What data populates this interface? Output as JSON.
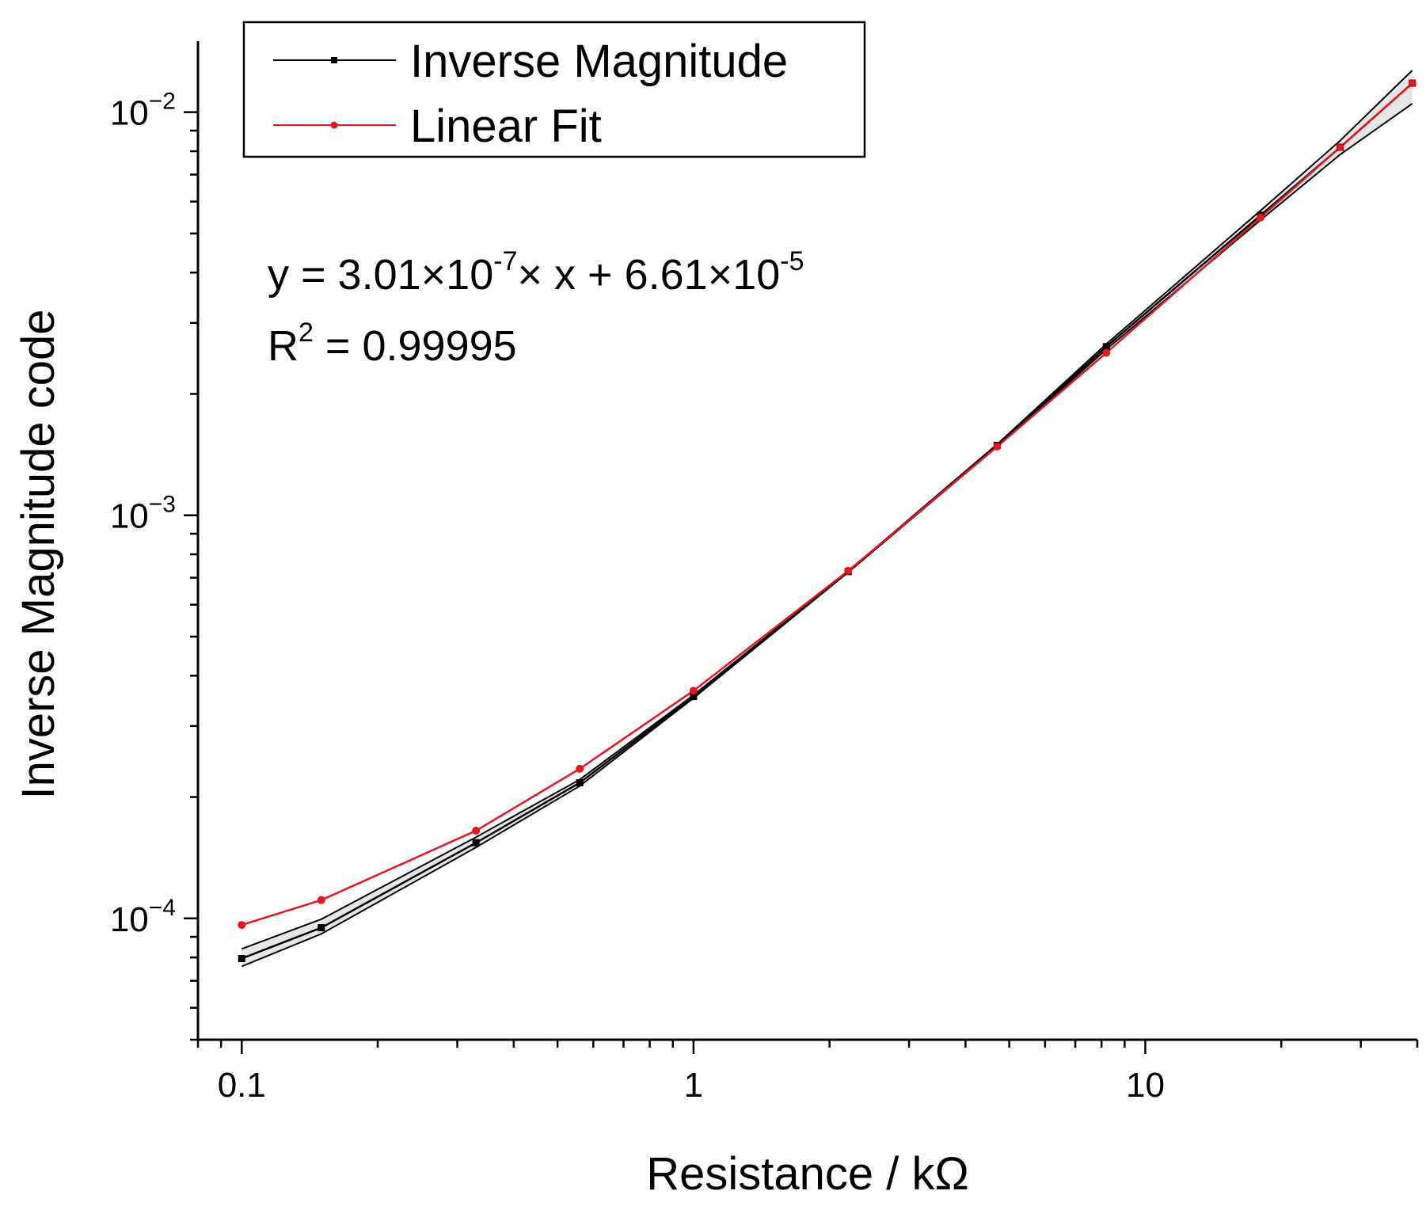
{
  "chart_data": {
    "type": "line",
    "title": "",
    "xlabel": "Resistance / kΩ",
    "ylabel": "Inverse Magnitude code",
    "xscale": "log",
    "yscale": "log",
    "xlim": [
      0.08,
      40
    ],
    "ylim": [
      5e-05,
      0.015
    ],
    "x_ticks": [
      {
        "value": 0.1,
        "label": "0.1"
      },
      {
        "value": 1,
        "label": "1"
      },
      {
        "value": 10,
        "label": "10"
      }
    ],
    "y_ticks": [
      {
        "value": 0.0001,
        "base": "10",
        "exp": "−4"
      },
      {
        "value": 0.001,
        "base": "10",
        "exp": "−3"
      },
      {
        "value": 0.01,
        "base": "10",
        "exp": "−2"
      }
    ],
    "legend_position": "top-left",
    "series": [
      {
        "name": "Inverse Magnitude",
        "color": "#000000",
        "marker": "square",
        "x": [
          0.1,
          0.15,
          0.33,
          0.56,
          1.0,
          2.2,
          4.7,
          8.2,
          18,
          27,
          39
        ],
        "y": [
          7.95e-05,
          9.48e-05,
          0.000154,
          0.000217,
          0.000355,
          0.000725,
          0.00149,
          0.00262,
          0.00555,
          0.00818,
          0.0118
        ],
        "confidence_upper": [
          8.4e-05,
          9.95e-05,
          0.000159,
          0.000221,
          0.000358,
          0.000727,
          0.0015,
          0.00266,
          0.0057,
          0.0085,
          0.0127
        ],
        "confidence_lower": [
          7.6e-05,
          9.15e-05,
          0.00015,
          0.000213,
          0.000352,
          0.000722,
          0.00148,
          0.00258,
          0.0054,
          0.00785,
          0.0105
        ]
      },
      {
        "name": "Linear Fit",
        "color": "#e8141e",
        "marker": "circle",
        "x": [
          0.1,
          0.15,
          0.33,
          0.56,
          1.0,
          2.2,
          4.7,
          8.2,
          18,
          27,
          39
        ],
        "y": [
          9.63e-05,
          0.000111,
          0.000165,
          0.000235,
          0.000367,
          0.000728,
          0.00148,
          0.00253,
          0.00548,
          0.00819,
          0.0118
        ]
      }
    ],
    "annotations": {
      "fit_equation_prefix": "y = 3.01×10",
      "fit_exp1": "-7",
      "fit_equation_middle": "× x + 6.61×10",
      "fit_exp2": "-5",
      "r2_prefix": "R",
      "r2_sup": "2",
      "r2_value": " = 0.99995"
    }
  }
}
